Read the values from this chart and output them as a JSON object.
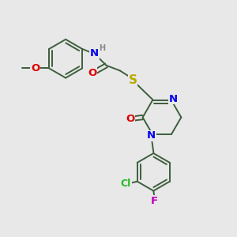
{
  "bg_color": "#e8e8e8",
  "bond_color": "#3d5e3d",
  "atom_colors": {
    "N": "#0000ee",
    "O": "#dd0000",
    "S": "#bbaa00",
    "Cl": "#22bb22",
    "F": "#bb00bb",
    "H": "#888888",
    "C": "#3d5e3d"
  },
  "lw": 1.4,
  "fs": 8.5
}
